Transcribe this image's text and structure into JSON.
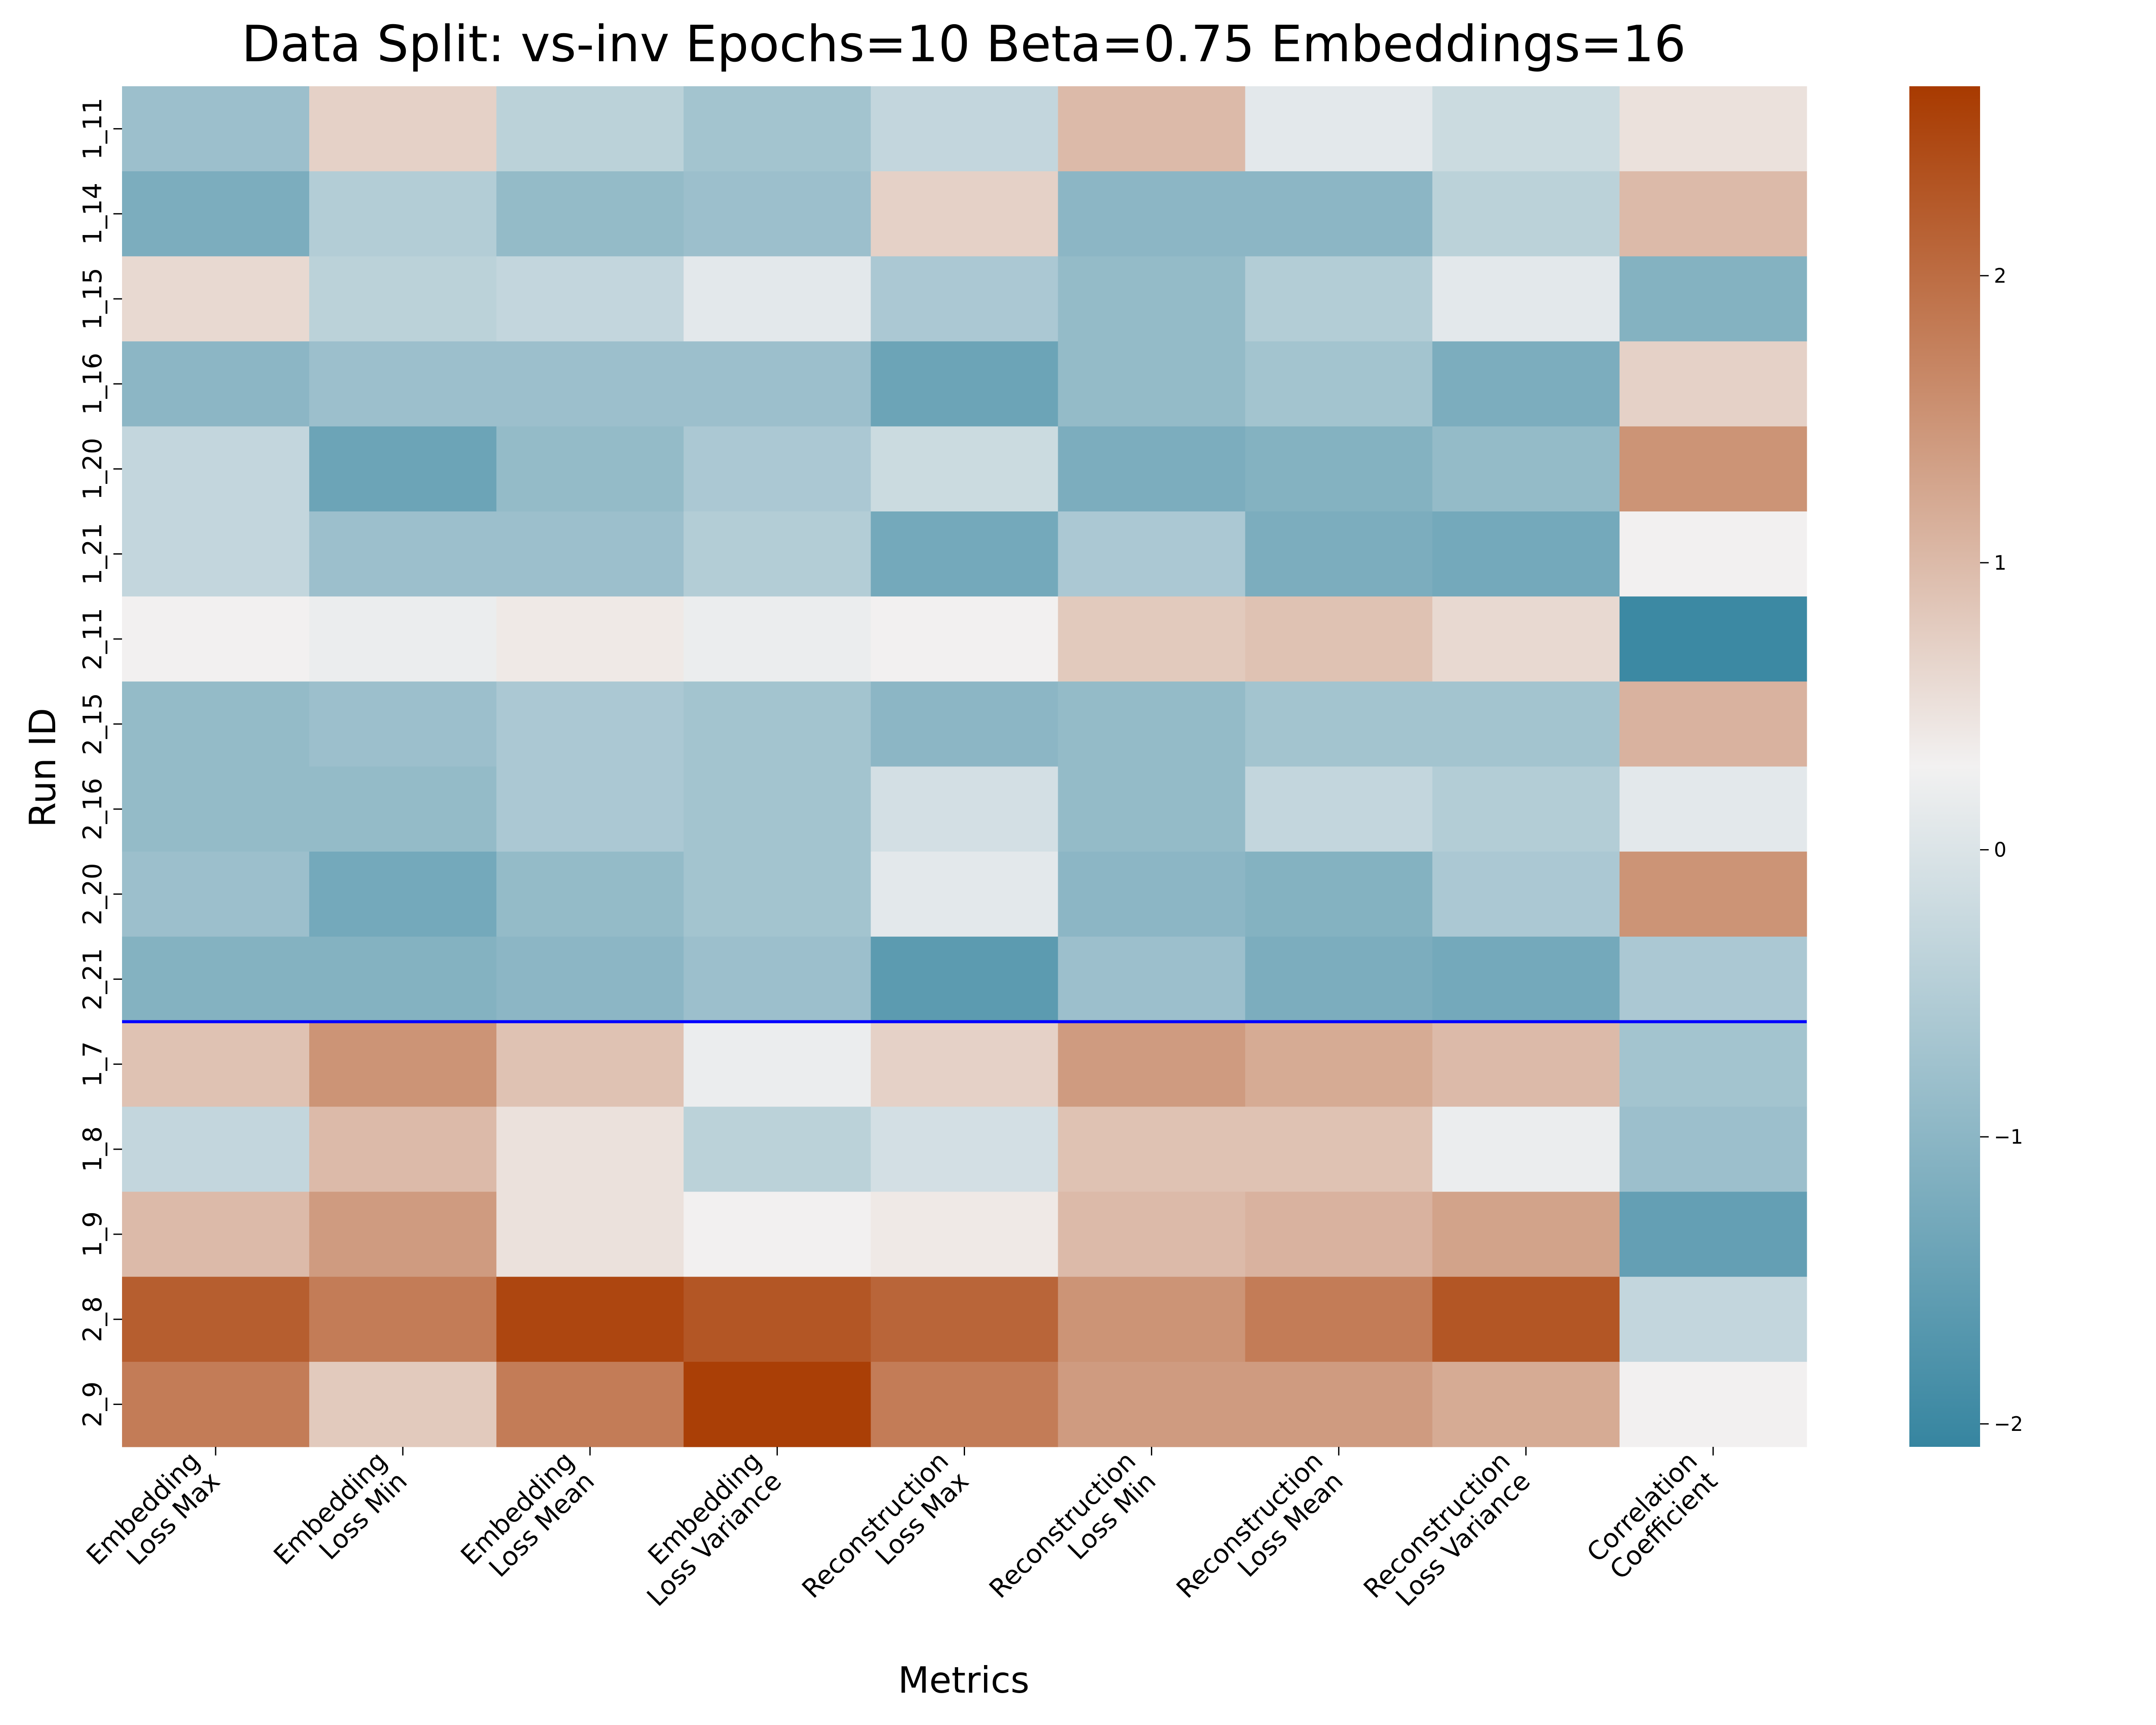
{
  "chart_data": {
    "type": "heatmap",
    "title": "Data Split: vs-inv Epochs=10 Beta=0.75 Embeddings=16",
    "xlabel": "Metrics",
    "ylabel": "Run ID",
    "columns": [
      "Embedding\nLoss Max",
      "Embedding\nLoss Min",
      "Embedding\nLoss Mean",
      "Embedding\nLoss Variance",
      "Reconstruction\nLoss Max",
      "Reconstruction\nLoss Min",
      "Reconstruction\nLoss Mean",
      "Reconstruction\nLoss Variance",
      "Correlation\nCoefficient"
    ],
    "rows": [
      "1_11",
      "1_14",
      "1_15",
      "1_16",
      "1_20",
      "1_21",
      "2_11",
      "2_15",
      "2_16",
      "2_20",
      "2_21",
      "1_7",
      "1_8",
      "1_9",
      "2_8",
      "2_9"
    ],
    "values": [
      [
        -0.8,
        0.7,
        -0.4,
        -0.7,
        -0.3,
        1.0,
        0.1,
        -0.2,
        0.5
      ],
      [
        -1.2,
        -0.5,
        -0.9,
        -0.8,
        0.7,
        -1.0,
        -1.0,
        -0.4,
        1.0
      ],
      [
        0.6,
        -0.4,
        -0.3,
        0.1,
        -0.6,
        -0.9,
        -0.5,
        0.1,
        -1.1
      ],
      [
        -1.0,
        -0.8,
        -0.8,
        -0.8,
        -1.4,
        -0.9,
        -0.7,
        -1.2,
        0.7
      ],
      [
        -0.3,
        -1.4,
        -0.9,
        -0.6,
        -0.2,
        -1.2,
        -1.1,
        -0.9,
        1.5
      ],
      [
        -0.3,
        -0.8,
        -0.8,
        -0.5,
        -1.3,
        -0.6,
        -1.2,
        -1.3,
        0.3
      ],
      [
        0.3,
        0.2,
        0.4,
        0.2,
        0.3,
        0.8,
        0.9,
        0.6,
        -2.0
      ],
      [
        -0.9,
        -0.8,
        -0.6,
        -0.7,
        -1.0,
        -0.9,
        -0.7,
        -0.7,
        1.1
      ],
      [
        -0.9,
        -0.9,
        -0.6,
        -0.7,
        -0.1,
        -0.9,
        -0.3,
        -0.5,
        0.1
      ],
      [
        -0.8,
        -1.3,
        -0.9,
        -0.7,
        0.1,
        -1.0,
        -1.1,
        -0.6,
        1.5
      ],
      [
        -1.1,
        -1.1,
        -1.0,
        -0.8,
        -1.6,
        -0.8,
        -1.2,
        -1.3,
        -0.6
      ],
      [
        0.9,
        1.5,
        0.9,
        0.2,
        0.7,
        1.4,
        1.2,
        1.0,
        -0.7
      ],
      [
        -0.3,
        1.0,
        0.5,
        -0.4,
        -0.1,
        0.9,
        0.9,
        0.2,
        -0.8
      ],
      [
        1.0,
        1.4,
        0.5,
        0.3,
        0.4,
        1.0,
        1.1,
        1.3,
        -1.5
      ],
      [
        2.2,
        1.8,
        2.5,
        2.3,
        2.1,
        1.5,
        1.8,
        2.3,
        -0.3
      ],
      [
        1.8,
        0.8,
        1.8,
        2.6,
        1.8,
        1.4,
        1.4,
        1.2,
        0.3
      ]
    ],
    "vmin": -2.08,
    "vmax": 2.66,
    "colormap": {
      "low": "#3685a0",
      "mid": "#f2f1f1",
      "high": "#a83a00"
    },
    "colorbar_ticks": [
      -2,
      -1,
      0,
      1,
      2
    ],
    "separator": {
      "after_row": "2_21",
      "color": "#0000ff"
    },
    "grid": false,
    "legend": "colorbar-right"
  }
}
